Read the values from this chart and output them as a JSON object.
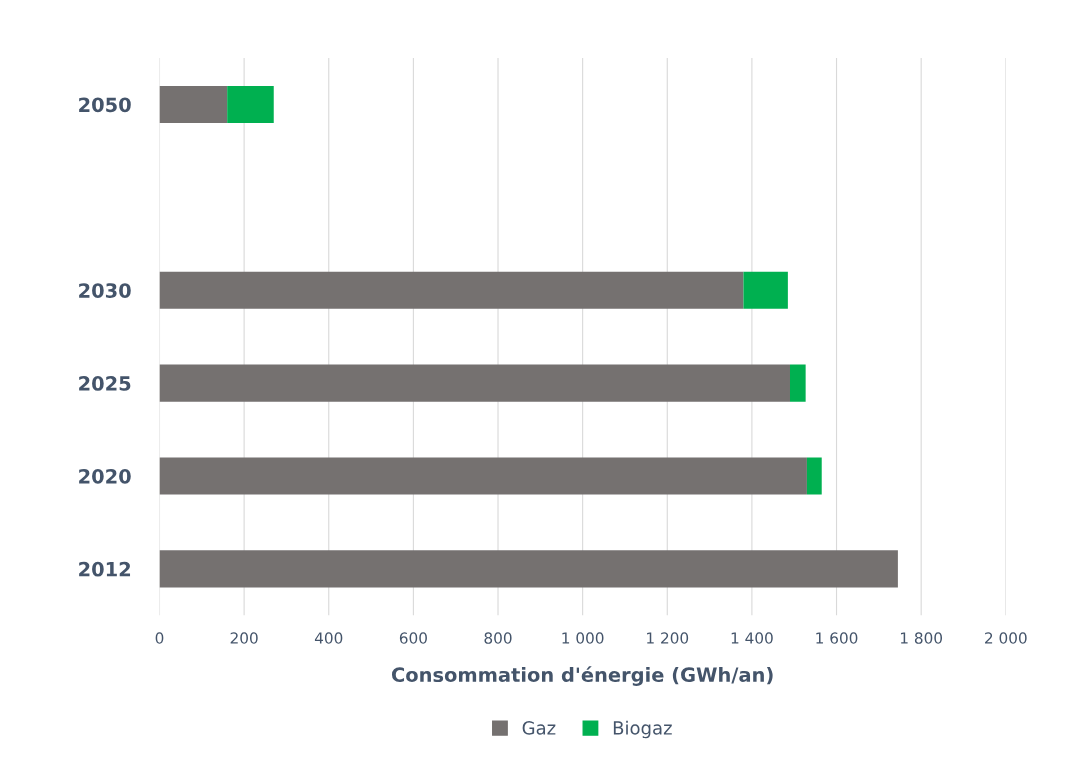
{
  "chart_data": {
    "type": "bar",
    "orientation": "horizontal",
    "stacked": true,
    "categories": [
      "2050",
      null,
      "2030",
      "2025",
      "2020",
      "2012"
    ],
    "series": [
      {
        "name": "Gaz",
        "color": "#757170",
        "values": [
          160,
          null,
          1380,
          1490,
          1530,
          1745
        ]
      },
      {
        "name": "Biogaz",
        "color": "#00b050",
        "values": [
          110,
          null,
          105,
          37,
          35,
          null
        ]
      }
    ],
    "xlabel": "Consommation d'énergie (GWh/an)",
    "xlim": [
      0,
      2000
    ],
    "xticks": [
      0,
      200,
      400,
      600,
      800,
      {
        "value": 1000,
        "label": "1 000"
      },
      {
        "value": 1200,
        "label": "1 200"
      },
      {
        "value": 1400,
        "label": "1 400"
      },
      {
        "value": 1600,
        "label": "1 600"
      },
      {
        "value": 1800,
        "label": "1 800"
      },
      {
        "value": 2000,
        "label": "2 000"
      }
    ],
    "grid": "x",
    "legend": "bottom"
  }
}
